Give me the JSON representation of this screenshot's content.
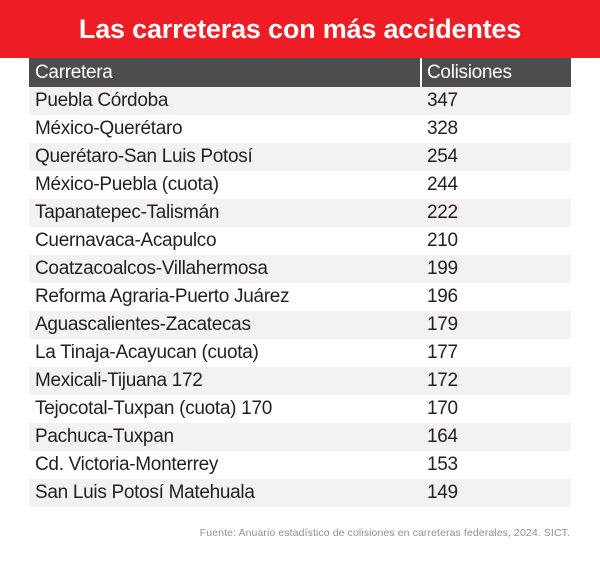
{
  "header": {
    "title": "Las carreteras con más accidentes"
  },
  "chart_data": {
    "type": "table",
    "title": "Las carreteras con más accidentes",
    "columns": [
      "Carretera",
      "Colisiones"
    ],
    "rows": [
      [
        "Puebla Córdoba",
        347
      ],
      [
        "México-Querétaro",
        328
      ],
      [
        "Querétaro-San Luis Potosí",
        254
      ],
      [
        "México-Puebla (cuota)",
        244
      ],
      [
        "Tapanatepec-Talismán",
        222
      ],
      [
        "Cuernavaca-Acapulco",
        210
      ],
      [
        "Coatzacoalcos-Villahermosa",
        199
      ],
      [
        "Reforma Agraria-Puerto Juárez",
        196
      ],
      [
        "Aguascalientes-Zacatecas",
        179
      ],
      [
        "La Tinaja-Acayucan (cuota)",
        177
      ],
      [
        "Mexicali-Tijuana 172",
        172
      ],
      [
        "Tejocotal-Tuxpan (cuota) 170",
        170
      ],
      [
        "Pachuca-Tuxpan",
        164
      ],
      [
        "Cd. Victoria-Monterrey",
        153
      ],
      [
        "San Luis Potosí Matehuala",
        149
      ]
    ],
    "source": "Fuente: Anuario estadístico de colisiones en carreteras federales, 2024. SICT.",
    "layout": {
      "striped": true,
      "header_background": "#4d4d4f",
      "stripe_color": "#f3f1f2"
    }
  },
  "colors": {
    "banner_red": "#ee1c25",
    "header_gray": "#4d4d4f",
    "row_stripe": "#f3f1f2",
    "text_dark": "#231f20",
    "source_gray": "#8f9095"
  }
}
